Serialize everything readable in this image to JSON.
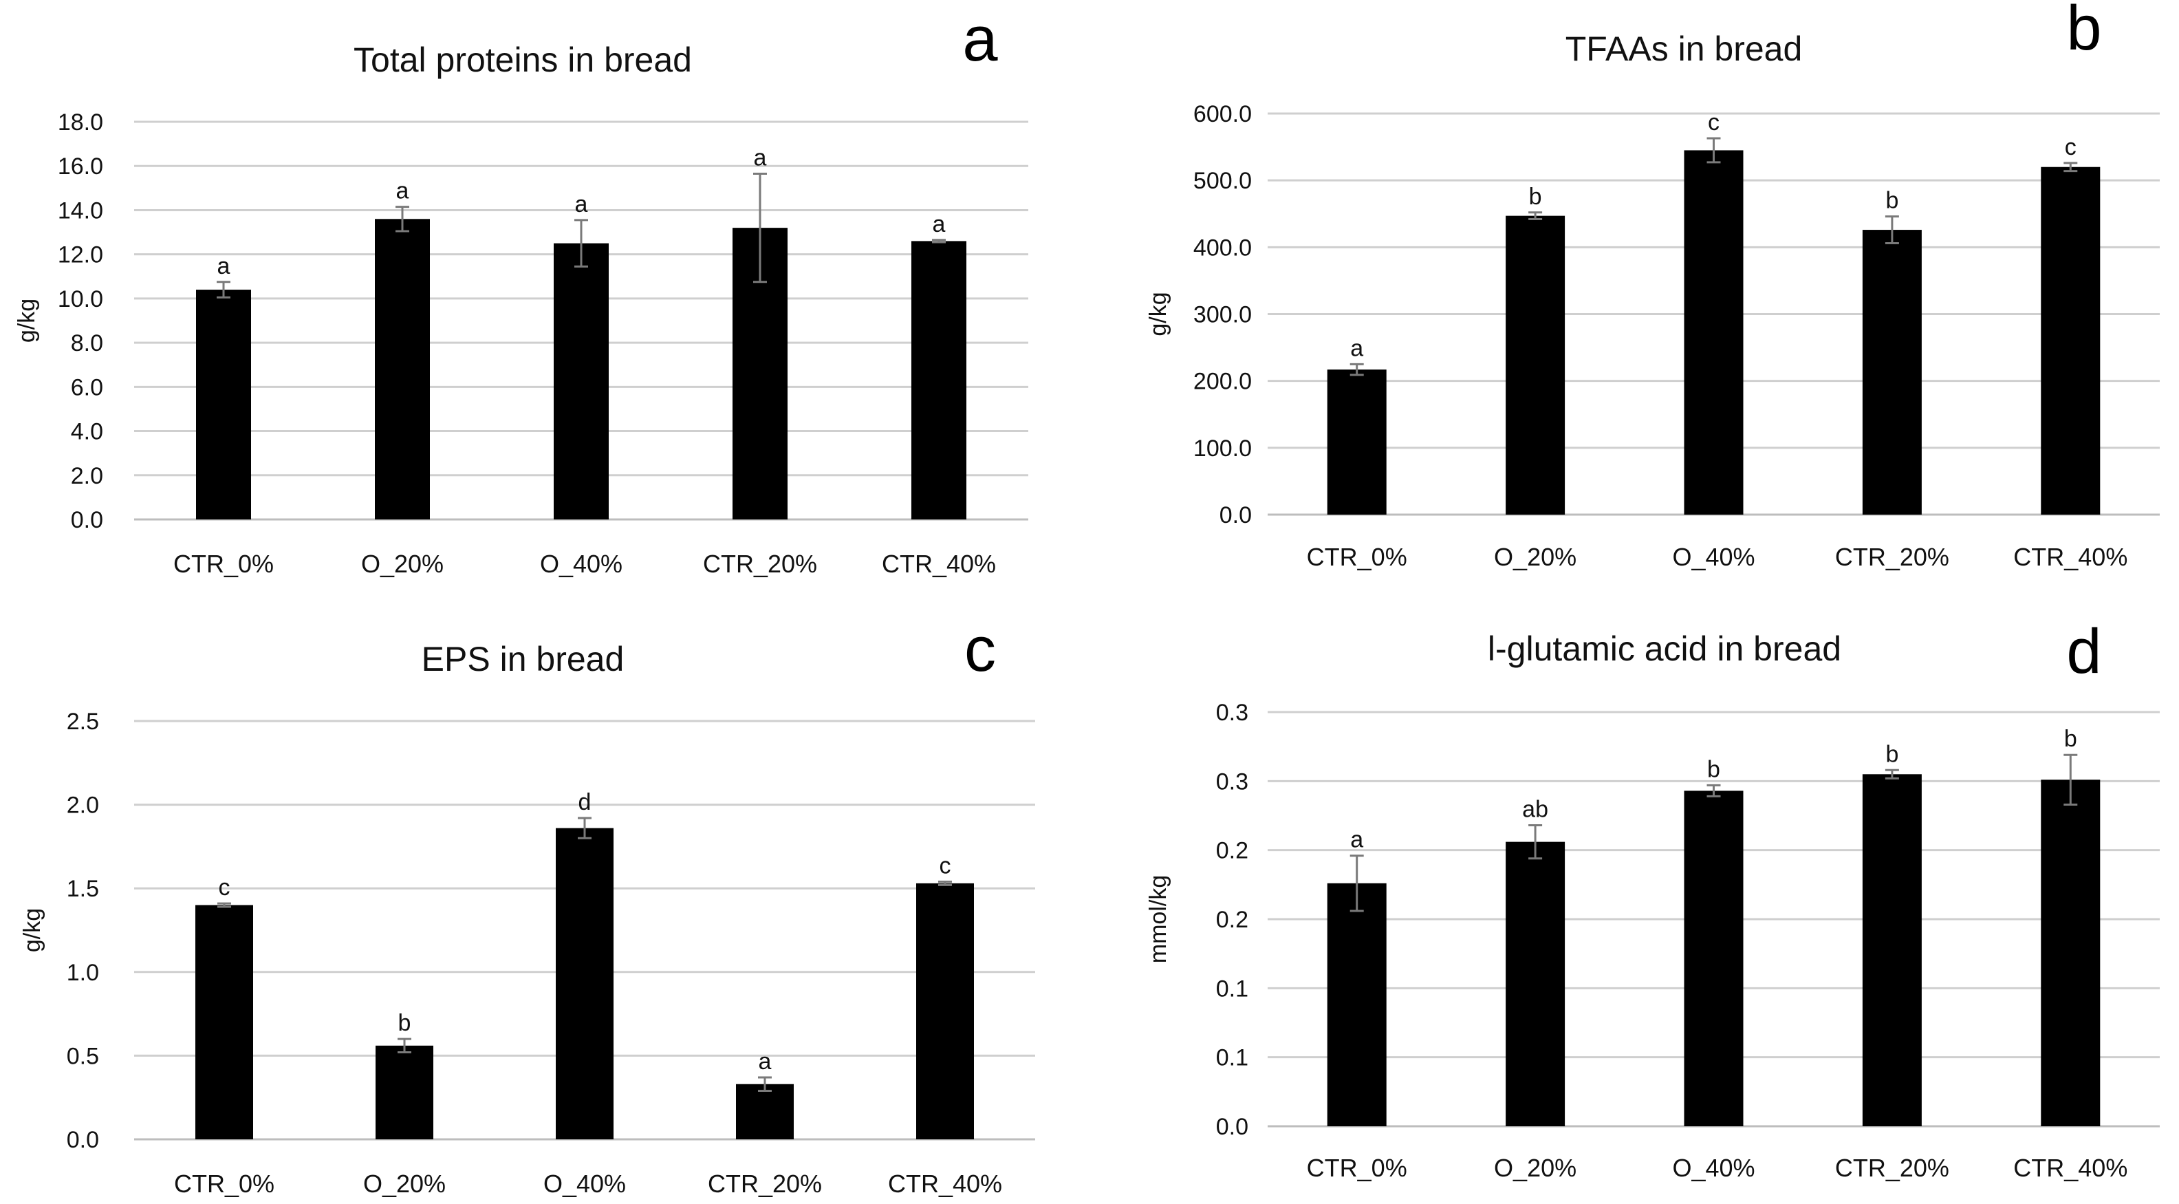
{
  "chart_data": [
    {
      "panel": "a",
      "type": "bar",
      "title": "Total proteins in bread",
      "xlabel": "",
      "ylabel": "g/kg",
      "ylim": [
        0,
        18
      ],
      "yticks": [
        "0.0",
        "2.0",
        "4.0",
        "6.0",
        "8.0",
        "10.0",
        "12.0",
        "14.0",
        "16.0",
        "18.0"
      ],
      "categories": [
        "CTR_0%",
        "O_20%",
        "O_40%",
        "CTR_20%",
        "CTR_40%"
      ],
      "values": [
        10.4,
        13.6,
        12.5,
        13.2,
        12.6
      ],
      "errors": [
        0.35,
        0.55,
        1.05,
        2.45,
        0.05
      ],
      "letters": [
        "a",
        "a",
        "a",
        "a",
        "a"
      ]
    },
    {
      "panel": "b",
      "type": "bar",
      "title": "TFAAs in bread",
      "xlabel": "",
      "ylabel": "g/kg",
      "ylim": [
        0,
        600
      ],
      "yticks": [
        "0.0",
        "100.0",
        "200.0",
        "300.0",
        "400.0",
        "500.0",
        "600.0"
      ],
      "categories": [
        "CTR_0%",
        "O_20%",
        "O_40%",
        "CTR_20%",
        "CTR_40%"
      ],
      "values": [
        217,
        447,
        545,
        426,
        520
      ],
      "errors": [
        8,
        5,
        18,
        20,
        6
      ],
      "letters": [
        "a",
        "b",
        "c",
        "b",
        "c"
      ]
    },
    {
      "panel": "c",
      "type": "bar",
      "title": "EPS in bread",
      "xlabel": "",
      "ylabel": "g/kg",
      "ylim": [
        0,
        2.5
      ],
      "yticks": [
        "0.0",
        "0.5",
        "1.0",
        "1.5",
        "2.0",
        "2.5"
      ],
      "categories": [
        "CTR_0%",
        "O_20%",
        "O_40%",
        "CTR_20%",
        "CTR_40%"
      ],
      "values": [
        1.4,
        0.56,
        1.86,
        0.33,
        1.53
      ],
      "errors": [
        0.01,
        0.04,
        0.06,
        0.04,
        0.01
      ],
      "letters": [
        "c",
        "b",
        "d",
        "a",
        "c"
      ]
    },
    {
      "panel": "d",
      "type": "bar",
      "title": "l-glutamic acid in bread",
      "xlabel": "",
      "ylabel": "mmol/kg",
      "ylim": [
        0,
        0.3
      ],
      "yticks": [
        "0.0",
        "0.1",
        "0.1",
        "0.2",
        "0.2",
        "0.3",
        "0.3"
      ],
      "categories": [
        "CTR_0%",
        "O_20%",
        "O_40%",
        "CTR_20%",
        "CTR_40%"
      ],
      "values": [
        0.176,
        0.206,
        0.243,
        0.255,
        0.251
      ],
      "errors": [
        0.02,
        0.012,
        0.004,
        0.003,
        0.018
      ],
      "letters": [
        "a",
        "ab",
        "b",
        "b",
        "b"
      ]
    }
  ]
}
